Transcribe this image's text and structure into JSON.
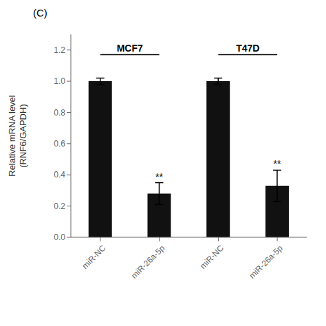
{
  "chart_data": {
    "type": "bar",
    "categories": [
      "miR-NC",
      "miR-26a-5p",
      "miR-NC",
      "miR-26a-5p"
    ],
    "values": [
      1.0,
      0.28,
      1.0,
      0.33
    ],
    "errors": [
      0.02,
      0.07,
      0.02,
      0.1
    ],
    "significance": [
      null,
      "**",
      null,
      "**"
    ],
    "color": "#111111",
    "group_labels": [
      "MCF7",
      "T47D"
    ],
    "ylabel": "Relative mRNA level\n(RNF6/GAPDH)",
    "panel_label": "(C)",
    "ylim": [
      0,
      1.3
    ],
    "yticks": [
      {
        "value": 0.0,
        "label": "0.0"
      },
      0.2,
      0.4,
      0.6,
      0.8,
      {
        "value": 1.0,
        "label": "1.0"
      },
      1.2
    ],
    "grid": false
  }
}
